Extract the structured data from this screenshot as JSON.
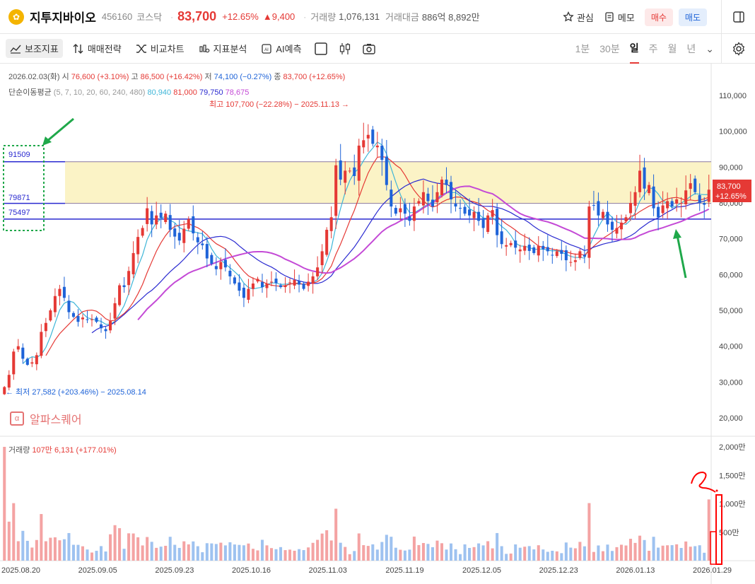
{
  "header": {
    "stock_name": "지투지바이오",
    "code": "456160",
    "market": "코스닥",
    "price": "83,700",
    "change_pct": "+12.65%",
    "change": "▲9,400",
    "volume_label": "거래량",
    "volume": "1,076,131",
    "amount_label": "거래대금",
    "amount": "886억 8,892만",
    "watch_label": "관심",
    "memo_label": "메모",
    "buy_label": "매수",
    "sell_label": "매도"
  },
  "toolbar": {
    "indicator_label": "보조지표",
    "strategy_label": "매매전략",
    "compare_label": "비교차트",
    "analysis_label": "지표분석",
    "ai_label": "AI예측",
    "periods": [
      "1분",
      "30분",
      "일",
      "주",
      "월",
      "년"
    ],
    "active_period": "일"
  },
  "info": {
    "date": "2026.02.03(화)",
    "open_label": "시",
    "open": "76,600 (+3.10%)",
    "high_label": "고",
    "high": "86,500 (+16.42%)",
    "low_label": "저",
    "low": "74,100 (−0.27%)",
    "close_label": "종",
    "close": "83,700 (+12.65%)",
    "ma_label": "단순이동평균",
    "ma_periods": "(5, 7, 10, 20, 60, 240, 480)",
    "ma5": "80,940",
    "ma10": "81,000",
    "ma20": "79,750",
    "ma60": "78,675"
  },
  "annotations": {
    "max_label": "최고 107,700 (−22.28%) − 2025.11.13 →",
    "min_label": "← 최저 27,582 (+203.46%) − 2025.08.14",
    "level1": "91509",
    "level2": "79871",
    "level3": "75497",
    "price_tag": "83,700",
    "price_tag_pct": "+12.65%"
  },
  "watermark": "알파스퀘어",
  "volume_panel": {
    "label": "거래량",
    "value": "107만 6,131 (+177.01%)"
  },
  "colors": {
    "up": "#e53935",
    "down": "#1e63d8",
    "ma5": "#3fb6d8",
    "ma10": "#e53935",
    "ma20": "#2a2ad0",
    "ma60": "#c44ad6",
    "band": "#fbf3c6"
  },
  "chart_data": {
    "type": "candlestick",
    "y_axis_ticks": [
      "110,000",
      "100,000",
      "90,000",
      "80,000",
      "70,000",
      "60,000",
      "50,000",
      "40,000",
      "30,000",
      "20,000"
    ],
    "ylim": [
      20000,
      110000
    ],
    "volume_axis_ticks": [
      "2,000만",
      "1,500만",
      "1,000만",
      "500만"
    ],
    "x_ticks": [
      "2025.08.20",
      "2025.09.05",
      "2025.09.23",
      "2025.10.16",
      "2025.11.03",
      "2025.11.19",
      "2025.12.05",
      "2025.12.23",
      "2026.01.13",
      "2026.01.29"
    ],
    "close": [
      28600,
      32000,
      38500,
      40000,
      36500,
      34800,
      35500,
      37500,
      44000,
      46500,
      50000,
      54000,
      56000,
      53500,
      49500,
      48200,
      46800,
      48000,
      47300,
      47500,
      46800,
      45000,
      44200,
      47000,
      52000,
      57000,
      56500,
      61000,
      66000,
      70500,
      73000,
      78500,
      74000,
      76500,
      75800,
      77000,
      72500,
      70600,
      69500,
      72800,
      75500,
      71500,
      69000,
      68200,
      64500,
      63000,
      61500,
      63500,
      62000,
      59500,
      57500,
      55500,
      53500,
      56000,
      57500,
      58800,
      56500,
      57500,
      58000,
      57600,
      56500,
      57000,
      57800,
      58500,
      57200,
      56000,
      58000,
      59500,
      62000,
      66500,
      72500,
      76000,
      90500,
      86500,
      89000,
      89000,
      87500,
      96000,
      97500,
      99000,
      96500,
      96000,
      92000,
      85000,
      79000,
      77000,
      78500,
      77000,
      75000,
      79000,
      80500,
      83000,
      80500,
      79000,
      83000,
      86500,
      85000,
      81000,
      79000,
      78500,
      77000,
      76500,
      77500,
      75000,
      73000,
      76500,
      78000,
      71000,
      68500,
      68200,
      68800,
      67500,
      67000,
      68000,
      66600,
      66000,
      68000,
      67000,
      66500,
      65500,
      66500,
      65800,
      64000,
      63500,
      64000,
      66500,
      65000,
      79000,
      79300,
      76500,
      77500,
      74000,
      72500,
      73000,
      74500,
      76000,
      80000,
      83000,
      89000,
      84000,
      85000,
      78500,
      76000,
      79300,
      80500,
      79000,
      81000,
      80000,
      83500,
      85500,
      83000,
      80000,
      79500,
      83700
    ]
  }
}
